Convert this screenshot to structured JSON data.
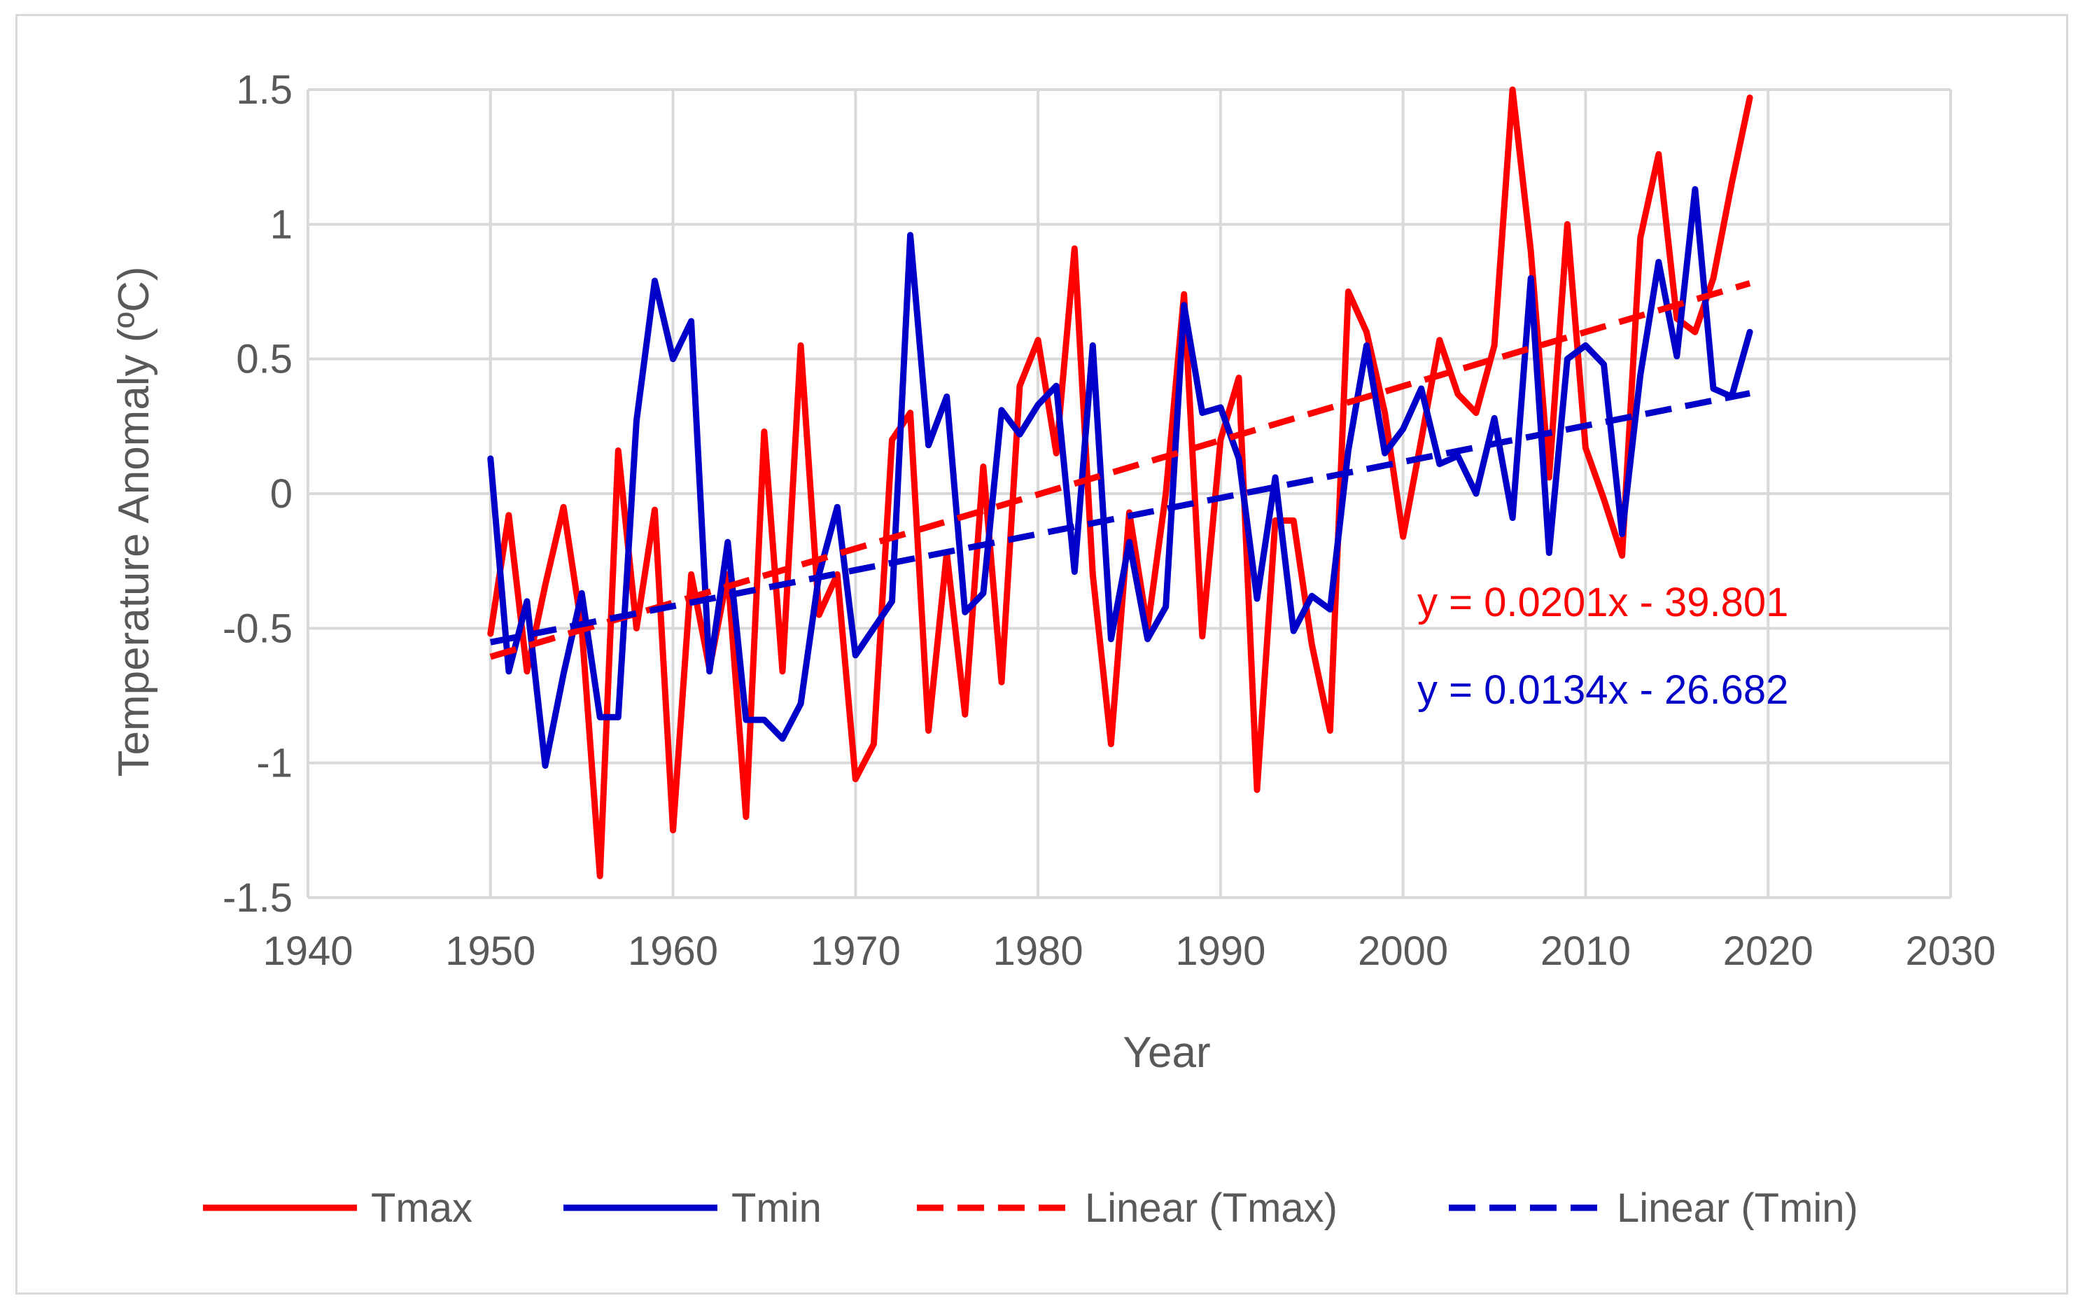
{
  "chart_data": {
    "type": "line",
    "title": "",
    "xlabel": "Year",
    "ylabel": "Temperature Anomaly (ºC)",
    "xlim": [
      1940,
      2030
    ],
    "ylim": [
      -1.5,
      1.5
    ],
    "xticks": [
      1940,
      1950,
      1960,
      1970,
      1980,
      1990,
      2000,
      2010,
      2020,
      2030
    ],
    "xtick_labels": [
      "1940",
      "1950",
      "1960",
      "1970",
      "1980",
      "1990",
      "2000",
      "2010",
      "2020",
      "2030"
    ],
    "yticks": [
      1.5,
      1,
      0.5,
      0,
      -0.5,
      -1,
      -1.5
    ],
    "ytick_labels": [
      "1.5",
      "1",
      "0.5",
      "0",
      "-0.5",
      "-1",
      "-1.5"
    ],
    "grid": true,
    "legend_position": "bottom",
    "colors": {
      "tmax": "#ff0000",
      "tmin": "#0000c8",
      "axis_text": "#595959",
      "grid": "#d9d9d9"
    },
    "x": [
      1950,
      1951,
      1952,
      1953,
      1954,
      1955,
      1956,
      1957,
      1958,
      1959,
      1960,
      1961,
      1962,
      1963,
      1964,
      1965,
      1966,
      1967,
      1968,
      1969,
      1970,
      1971,
      1972,
      1973,
      1974,
      1975,
      1976,
      1977,
      1978,
      1979,
      1980,
      1981,
      1982,
      1983,
      1984,
      1985,
      1986,
      1987,
      1988,
      1989,
      1990,
      1991,
      1992,
      1993,
      1994,
      1995,
      1996,
      1997,
      1998,
      1999,
      2000,
      2001,
      2002,
      2003,
      2004,
      2005,
      2006,
      2007,
      2008,
      2009,
      2010,
      2011,
      2012,
      2013,
      2014,
      2015,
      2016,
      2017,
      2018,
      2019
    ],
    "series": [
      {
        "name": "Tmax",
        "style": "solid",
        "color": "#ff0000",
        "values": [
          -0.52,
          -0.08,
          -0.66,
          -0.34,
          -0.05,
          -0.5,
          -1.42,
          0.16,
          -0.5,
          -0.06,
          -1.25,
          -0.3,
          -0.65,
          -0.3,
          -1.2,
          0.23,
          -0.66,
          0.55,
          -0.45,
          -0.3,
          -1.06,
          -0.93,
          0.2,
          0.3,
          -0.88,
          -0.22,
          -0.82,
          0.1,
          -0.7,
          0.4,
          0.57,
          0.15,
          0.91,
          -0.3,
          -0.93,
          -0.07,
          -0.5,
          0.0,
          0.74,
          -0.53,
          0.2,
          0.43,
          -1.1,
          -0.1,
          -0.1,
          -0.56,
          -0.88,
          0.75,
          0.6,
          0.3,
          -0.16,
          0.2,
          0.57,
          0.37,
          0.3,
          0.55,
          1.5,
          0.9,
          0.06,
          1.0,
          0.17,
          -0.02,
          -0.23,
          0.95,
          1.26,
          0.65,
          0.6,
          0.8,
          1.15,
          1.47
        ]
      },
      {
        "name": "Tmin",
        "style": "solid",
        "color": "#0000c8",
        "values": [
          0.13,
          -0.66,
          -0.4,
          -1.01,
          -0.67,
          -0.37,
          -0.83,
          -0.83,
          0.27,
          0.79,
          0.5,
          0.64,
          -0.66,
          -0.18,
          -0.84,
          -0.84,
          -0.91,
          -0.78,
          -0.3,
          -0.05,
          -0.6,
          -0.5,
          -0.4,
          0.96,
          0.18,
          0.36,
          -0.44,
          -0.37,
          0.31,
          0.22,
          0.33,
          0.4,
          -0.29,
          0.55,
          -0.54,
          -0.18,
          -0.54,
          -0.42,
          0.7,
          0.3,
          0.32,
          0.13,
          -0.39,
          0.06,
          -0.51,
          -0.38,
          -0.43,
          0.16,
          0.55,
          0.15,
          0.24,
          0.39,
          0.11,
          0.14,
          0.0,
          0.28,
          -0.09,
          0.8,
          -0.22,
          0.5,
          0.55,
          0.48,
          -0.15,
          0.44,
          0.86,
          0.51,
          1.13,
          0.39,
          0.36,
          0.6
        ]
      },
      {
        "name": "Linear (Tmax)",
        "style": "dashed",
        "color": "#ff0000",
        "slope": 0.0201,
        "intercept": -39.801,
        "x_range": [
          1950,
          2019
        ]
      },
      {
        "name": "Linear (Tmin)",
        "style": "dashed",
        "color": "#0000c8",
        "slope": 0.0134,
        "intercept": -26.682,
        "x_range": [
          1950,
          2019
        ]
      }
    ],
    "annotations": [
      {
        "text": "y = 0.0201x - 39.801",
        "color": "#ff0000"
      },
      {
        "text": "y = 0.0134x - 26.682",
        "color": "#0000c8"
      }
    ]
  }
}
